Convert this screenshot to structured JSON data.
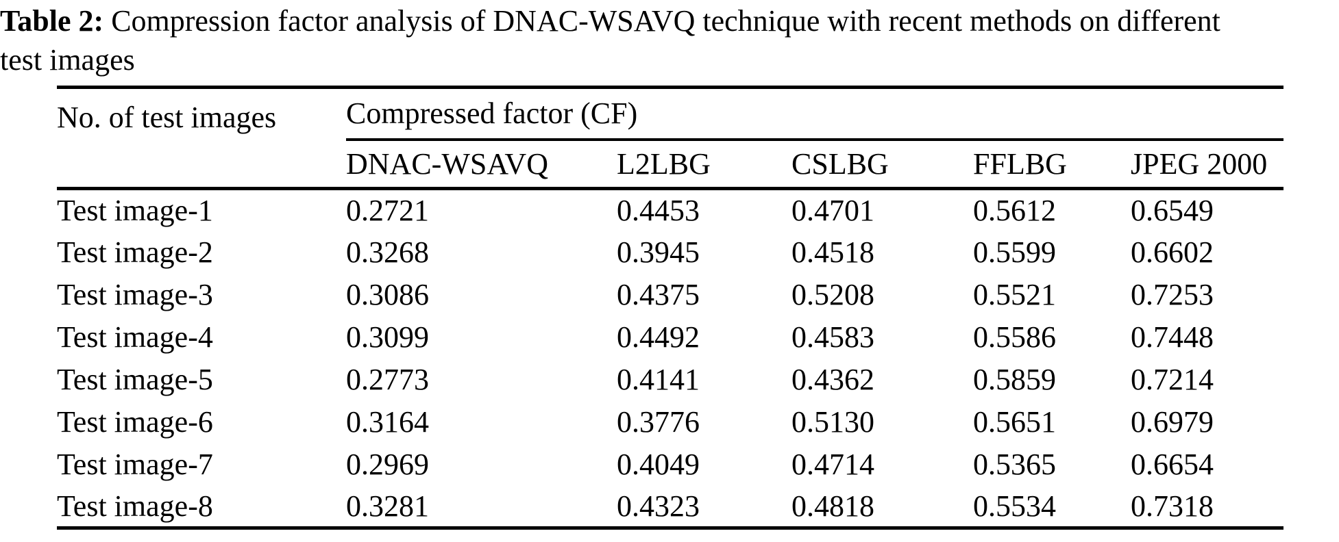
{
  "caption": {
    "label": "Table 2:",
    "line1": "Compression factor analysis of DNAC-WSAVQ technique with recent methods on different",
    "line2": "test images"
  },
  "table": {
    "row_header": "No. of test images",
    "group_header": "Compressed factor (CF)",
    "method_headers": [
      "DNAC-WSAVQ",
      "L2LBG",
      "CSLBG",
      "FFLBG",
      "JPEG 2000"
    ],
    "rows": [
      {
        "label": "Test image-1",
        "values": [
          "0.2721",
          "0.4453",
          "0.4701",
          "0.5612",
          "0.6549"
        ]
      },
      {
        "label": "Test image-2",
        "values": [
          "0.3268",
          "0.3945",
          "0.4518",
          "0.5599",
          "0.6602"
        ]
      },
      {
        "label": "Test image-3",
        "values": [
          "0.3086",
          "0.4375",
          "0.5208",
          "0.5521",
          "0.7253"
        ]
      },
      {
        "label": "Test image-4",
        "values": [
          "0.3099",
          "0.4492",
          "0.4583",
          "0.5586",
          "0.7448"
        ]
      },
      {
        "label": "Test image-5",
        "values": [
          "0.2773",
          "0.4141",
          "0.4362",
          "0.5859",
          "0.7214"
        ]
      },
      {
        "label": "Test image-6",
        "values": [
          "0.3164",
          "0.3776",
          "0.5130",
          "0.5651",
          "0.6979"
        ]
      },
      {
        "label": "Test image-7",
        "values": [
          "0.2969",
          "0.4049",
          "0.4714",
          "0.5365",
          "0.6654"
        ]
      },
      {
        "label": "Test image-8",
        "values": [
          "0.3281",
          "0.4323",
          "0.4818",
          "0.5534",
          "0.7318"
        ]
      }
    ]
  }
}
